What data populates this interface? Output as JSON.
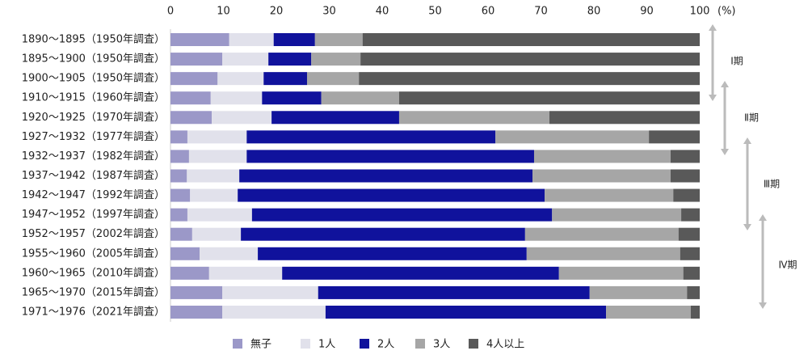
{
  "chart_data": {
    "type": "stacked_barh",
    "categories": [
      "1890～1895（1950年調査）",
      "1895～1900（1950年調査）",
      "1900～1905（1950年調査）",
      "1910～1915（1960年調査）",
      "1920～1925（1970年調査）",
      "1927～1932（1977年調査）",
      "1932～1937（1982年調査）",
      "1937～1942（1987年調査）",
      "1942～1947（1992年調査）",
      "1947～1952（1997年調査）",
      "1952～1957（2002年調査）",
      "1955～1960（2005年調査）",
      "1960～1965（2010年調査）",
      "1965～1970（2015年調査）",
      "1971～1976（2021年調査）"
    ],
    "series": [
      {
        "name": "無子",
        "color": "#9b98c8",
        "values": [
          11.1,
          9.8,
          8.9,
          7.6,
          7.8,
          3.2,
          3.5,
          3.1,
          3.7,
          3.2,
          4.1,
          5.5,
          7.3,
          9.8,
          9.8
        ]
      },
      {
        "name": "1人",
        "color": "#e1e1eb",
        "values": [
          8.4,
          8.7,
          8.7,
          9.7,
          11.3,
          11.2,
          10.9,
          9.9,
          9.0,
          12.2,
          9.2,
          11.0,
          13.8,
          18.1,
          19.5
        ]
      },
      {
        "name": "2人",
        "color": "#10129c",
        "values": [
          7.8,
          8.1,
          8.2,
          11.2,
          24.1,
          47.0,
          54.3,
          55.4,
          58.0,
          56.7,
          53.7,
          50.8,
          52.3,
          51.3,
          53.0
        ]
      },
      {
        "name": "3人",
        "color": "#a6a6a6",
        "values": [
          9.0,
          9.3,
          9.8,
          14.7,
          28.4,
          29.0,
          25.8,
          26.1,
          24.3,
          24.4,
          29.0,
          29.0,
          23.5,
          18.4,
          16.0
        ]
      },
      {
        "name": "4人以上",
        "color": "#595959",
        "values": [
          63.7,
          64.1,
          64.4,
          56.8,
          28.4,
          9.6,
          5.5,
          5.5,
          5.0,
          3.5,
          4.0,
          3.7,
          3.1,
          2.4,
          1.7
        ]
      }
    ],
    "x_label": "(%)",
    "xlim": [
      0,
      100
    ],
    "xticks": [
      0,
      10,
      20,
      30,
      40,
      50,
      60,
      70,
      80,
      90,
      100
    ],
    "legend": "bottom",
    "annotations": [
      "Ⅰ期",
      "Ⅱ期",
      "Ⅲ期",
      "Ⅳ期"
    ]
  }
}
